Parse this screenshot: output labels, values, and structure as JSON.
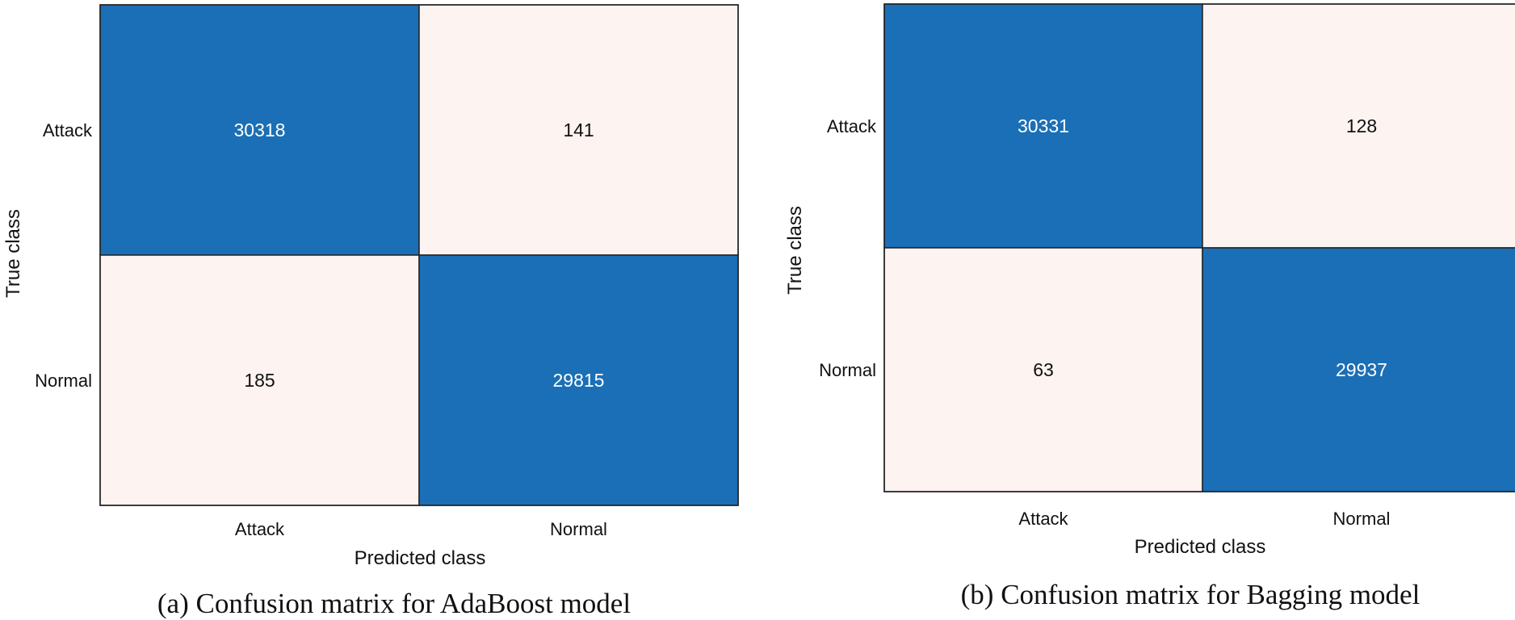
{
  "chart_data": [
    {
      "type": "heatmap",
      "title": "(a) Confusion matrix for AdaBoost model",
      "xlabel": "Predicted class",
      "ylabel": "True class",
      "x_categories": [
        "Attack",
        "Normal"
      ],
      "y_categories": [
        "Attack",
        "Normal"
      ],
      "values": [
        [
          30318,
          141
        ],
        [
          185,
          29815
        ]
      ],
      "colors": {
        "high": "#1b6fb6",
        "low": "#fdf3f0",
        "high_text": "#ffffff",
        "low_text": "#111111",
        "border": "#222222"
      }
    },
    {
      "type": "heatmap",
      "title": "(b) Confusion matrix for Bagging model",
      "xlabel": "Predicted class",
      "ylabel": "True class",
      "x_categories": [
        "Attack",
        "Normal"
      ],
      "y_categories": [
        "Attack",
        "Normal"
      ],
      "values": [
        [
          30331,
          128
        ],
        [
          63,
          29937
        ]
      ],
      "colors": {
        "high": "#1b6fb6",
        "low": "#fdf3f0",
        "high_text": "#ffffff",
        "low_text": "#111111",
        "border": "#222222"
      }
    }
  ]
}
